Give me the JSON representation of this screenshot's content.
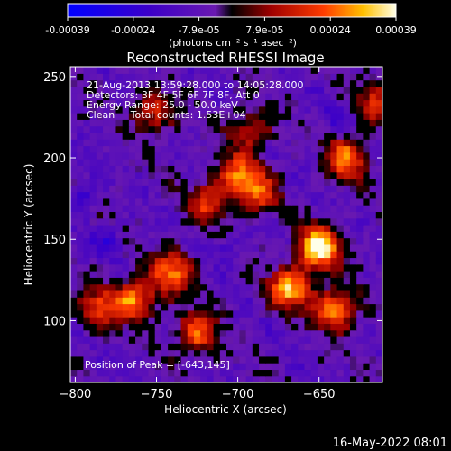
{
  "chart_data": {
    "type": "heatmap",
    "title": "Reconstructed RHESSI Image",
    "colorbar": {
      "ticks": [
        "-0.00039",
        "-0.00024",
        "-7.9e-05",
        "7.9e-05",
        "0.00024",
        "0.00039"
      ],
      "units": "(photons cm⁻² s⁻¹ asec⁻²)",
      "range": [
        -0.00039,
        0.00039
      ]
    },
    "xlabel": "Heliocentric X (arcsec)",
    "ylabel": "Heliocentric Y (arcsec)",
    "xlim": [
      -803,
      -611
    ],
    "ylim": [
      62,
      256
    ],
    "xticks": [
      -800,
      -750,
      -700,
      -650
    ],
    "xtick_labels": [
      "−800",
      "−750",
      "−700",
      "−650"
    ],
    "yticks": [
      100,
      150,
      200,
      250
    ],
    "ytick_labels": [
      "100",
      "150",
      "200",
      "250"
    ],
    "annotations": [
      "21-Aug-2013 13:59:28.000 to 14:05:28.000",
      "Detectors: 3F 4F 5F 6F 7F 8F, Att 0",
      "Energy Range: 25.0 - 50.0 keV",
      "Clean     Total counts: 1.53E+04"
    ],
    "peak_label": "Position of Peak = [-643,145]",
    "peak_position": [
      -643,
      145
    ],
    "bright_regions": [
      {
        "x": -650,
        "y": 145,
        "level": 1.0
      },
      {
        "x": -668,
        "y": 120,
        "level": 0.8
      },
      {
        "x": -640,
        "y": 107,
        "level": 0.75
      },
      {
        "x": -633,
        "y": 200,
        "level": 0.7
      },
      {
        "x": -740,
        "y": 130,
        "level": 0.7
      },
      {
        "x": -763,
        "y": 113,
        "level": 0.7
      },
      {
        "x": -725,
        "y": 93,
        "level": 0.65
      },
      {
        "x": -785,
        "y": 108,
        "level": 0.55
      },
      {
        "x": -700,
        "y": 190,
        "level": 0.6
      },
      {
        "x": -688,
        "y": 178,
        "level": 0.55
      },
      {
        "x": -718,
        "y": 173,
        "level": 0.5
      },
      {
        "x": -752,
        "y": 228,
        "level": 0.5
      },
      {
        "x": -692,
        "y": 218,
        "level": 0.45
      },
      {
        "x": -615,
        "y": 235,
        "level": 0.45
      }
    ],
    "negative_regions": [
      {
        "x": -795,
        "y": 178,
        "level": 0.5
      },
      {
        "x": -780,
        "y": 148,
        "level": 0.45
      },
      {
        "x": -708,
        "y": 145,
        "level": 0.35
      },
      {
        "x": -640,
        "y": 225,
        "level": 0.35
      }
    ]
  },
  "footer_timestamp": "16-May-2022 08:01"
}
